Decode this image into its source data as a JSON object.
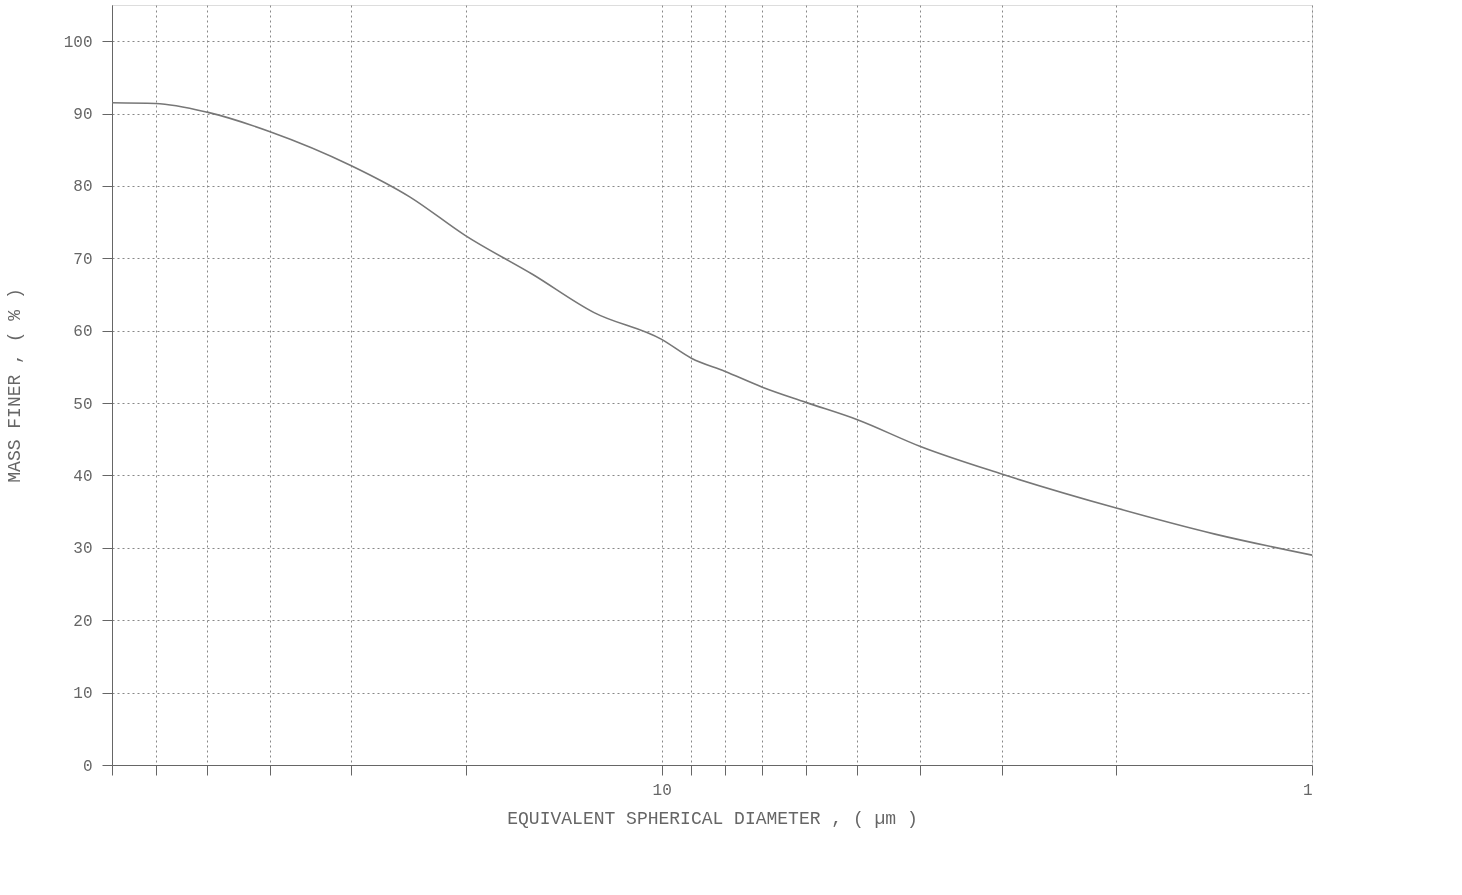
{
  "chart_data": {
    "type": "line",
    "xlabel": "EQUIVALENT SPHERICAL DIAMETER , ( µm )",
    "ylabel": "MASS  FINER , ( % )",
    "log": "x",
    "xlim": [
      70,
      1
    ],
    "xticks": [
      {
        "value": 70,
        "label": null
      },
      {
        "value": 60,
        "label": null
      },
      {
        "value": 50,
        "label": null
      },
      {
        "value": 40,
        "label": null
      },
      {
        "value": 30,
        "label": null
      },
      {
        "value": 20,
        "label": null
      },
      10,
      {
        "value": 9,
        "label": null
      },
      {
        "value": 8,
        "label": null
      },
      {
        "value": 7,
        "label": null
      },
      {
        "value": 6,
        "label": null
      },
      {
        "value": 5,
        "label": null
      },
      {
        "value": 4,
        "label": null
      },
      {
        "value": 3,
        "label": null
      },
      {
        "value": 2,
        "label": null
      },
      1
    ],
    "ylim": [
      0,
      105
    ],
    "yticks": [
      0,
      10,
      20,
      30,
      40,
      50,
      60,
      70,
      80,
      90,
      100
    ],
    "grid": true,
    "marker": "none",
    "line_style": "solid",
    "series": [
      {
        "color": "#777777",
        "x": [
          70,
          60,
          50,
          40,
          30,
          24.4,
          20,
          15.8,
          12.7,
          10,
          9,
          8,
          7,
          6,
          5,
          4,
          3,
          2,
          1.41,
          1
        ],
        "values": [
          91.5,
          91.4,
          90.2,
          87.5,
          82.8,
          78.5,
          73.1,
          67.8,
          62.5,
          58.8,
          56.2,
          54.4,
          52.2,
          50.1,
          47.7,
          44.0,
          40.2,
          35.5,
          31.9,
          29.0
        ]
      }
    ]
  }
}
